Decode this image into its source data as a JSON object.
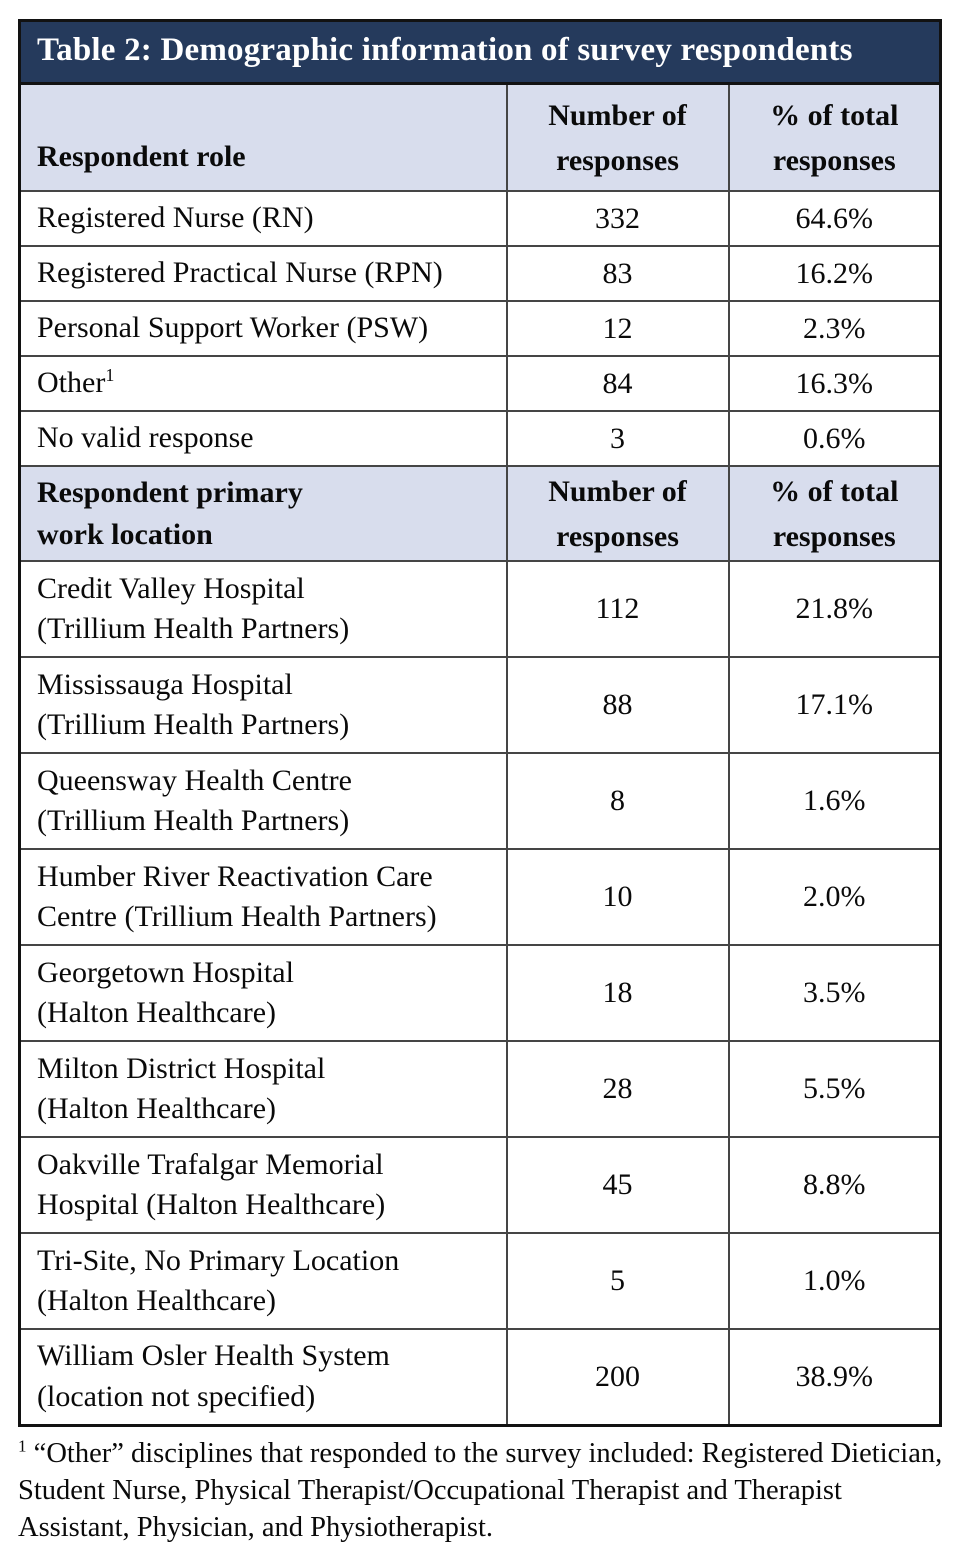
{
  "colors": {
    "title_bar_bg": "#253a5c",
    "title_text": "#ffffff",
    "header_row_bg": "#d8dded",
    "body_text": "#0a0a0a",
    "outer_border": "#121212",
    "inner_border": "#454545"
  },
  "table": {
    "title": "Table 2: Demographic information of survey respondents",
    "sections": [
      {
        "header": {
          "label": "Respondent role",
          "col2": "Number of\nresponses",
          "col3": "% of total\nresponses"
        },
        "rows": [
          {
            "label": "Registered Nurse (RN)",
            "sup": "",
            "count": "332",
            "percent": "64.6%"
          },
          {
            "label": "Registered Practical Nurse (RPN)",
            "sup": "",
            "count": "83",
            "percent": "16.2%"
          },
          {
            "label": "Personal Support Worker (PSW)",
            "sup": "",
            "count": "12",
            "percent": "2.3%"
          },
          {
            "label": "Other",
            "sup": "1",
            "count": "84",
            "percent": "16.3%"
          },
          {
            "label": "No valid response",
            "sup": "",
            "count": "3",
            "percent": "0.6%"
          }
        ]
      },
      {
        "header": {
          "label": "Respondent primary\nwork location",
          "col2": "Number of\nresponses",
          "col3": "% of total\nresponses"
        },
        "rows": [
          {
            "label": "Credit Valley Hospital\n(Trillium Health Partners)",
            "sup": "",
            "count": "112",
            "percent": "21.8%"
          },
          {
            "label": "Mississauga Hospital\n(Trillium Health Partners)",
            "sup": "",
            "count": "88",
            "percent": "17.1%"
          },
          {
            "label": "Queensway Health Centre\n(Trillium Health Partners)",
            "sup": "",
            "count": "8",
            "percent": "1.6%"
          },
          {
            "label": "Humber River Reactivation Care\nCentre (Trillium Health Partners)",
            "sup": "",
            "count": "10",
            "percent": "2.0%"
          },
          {
            "label": "Georgetown Hospital\n(Halton Healthcare)",
            "sup": "",
            "count": "18",
            "percent": "3.5%"
          },
          {
            "label": "Milton District Hospital\n(Halton Healthcare)",
            "sup": "",
            "count": "28",
            "percent": "5.5%"
          },
          {
            "label": "Oakville Trafalgar Memorial\nHospital (Halton Healthcare)",
            "sup": "",
            "count": "45",
            "percent": "8.8%"
          },
          {
            "label": "Tri-Site, No Primary Location\n(Halton Healthcare)",
            "sup": "",
            "count": "5",
            "percent": "1.0%"
          },
          {
            "label": "William Osler Health System\n(location not specified)",
            "sup": "",
            "count": "200",
            "percent": "38.9%"
          }
        ]
      }
    ]
  },
  "footnote": {
    "sup": "1",
    "text": " “Other” disciplines that responded to the survey included: Registered Dietician, Student Nurse, Physical Therapist/Occupational Therapist and Therapist Assistant, Physician, and Physiotherapist."
  }
}
